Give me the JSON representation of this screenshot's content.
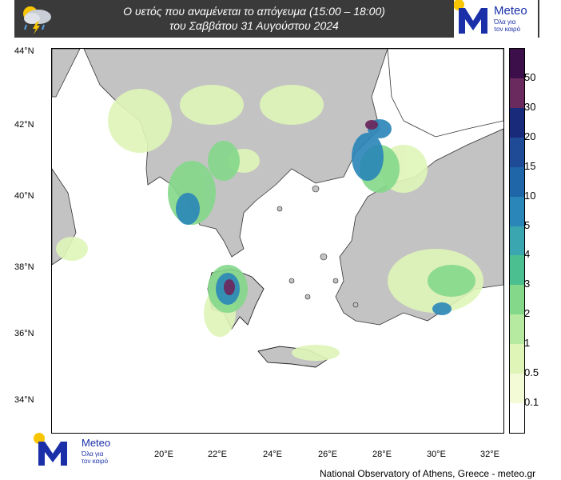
{
  "header": {
    "title_line1": "Ο υετός που αναμένεται το απόγευμα (15:00 – 18:00)",
    "title_line2": "του Σαββάτου 31 Αυγούστου 2024"
  },
  "logo": {
    "brand": "Meteo",
    "tagline_line1": "Όλα για",
    "tagline_line2": "τον καιρό",
    "brand_color": "#1a2fa8",
    "sun_color": "#f7c600"
  },
  "axes": {
    "lat_labels": [
      "44°N",
      "42°N",
      "40°N",
      "38°N",
      "36°N",
      "34°N"
    ],
    "lon_labels": [
      "20°E",
      "22°E",
      "24°E",
      "26°E",
      "28°E",
      "30°E",
      "32°E"
    ]
  },
  "colorbar": {
    "labels": [
      "50",
      "30",
      "20",
      "15",
      "10",
      "5",
      "4",
      "3",
      "2",
      "1",
      "0.5",
      "0.1"
    ],
    "colors": [
      "#3d0f4a",
      "#6b2a5e",
      "#1a2a7a",
      "#1f4a95",
      "#1f66a8",
      "#2a86b8",
      "#3aa6b0",
      "#4cbf90",
      "#84d88a",
      "#b6eaa0",
      "#dff5b8",
      "#f3fbd6",
      "#ffffff"
    ]
  },
  "credit": "National Observatory of Athens, Greece - meteo.gr"
}
